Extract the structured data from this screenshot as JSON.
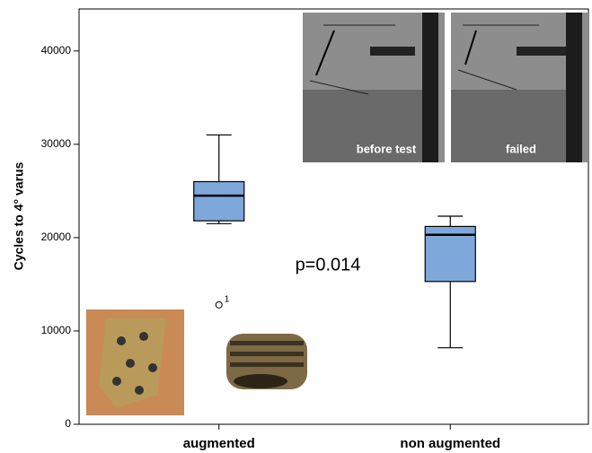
{
  "chart_data": {
    "type": "box",
    "y_label": "Cycles to 4° varus",
    "categories": [
      "augmented",
      "non augmented"
    ],
    "color": "#7fa8da",
    "boxes": [
      {
        "whisker_low": 21500,
        "q1": 21800,
        "median": 24500,
        "q3": 26000,
        "whisker_high": 31000,
        "outliers": [
          12800
        ],
        "outlier_cases": [
          "1"
        ]
      },
      {
        "whisker_low": 8200,
        "q1": 15300,
        "median": 20300,
        "q3": 21200,
        "whisker_high": 22300,
        "outliers": [],
        "outlier_cases": []
      }
    ],
    "ylim": [
      0,
      44500
    ],
    "yticks": [
      0,
      10000,
      20000,
      30000,
      40000
    ],
    "annotation": "p=0.014"
  },
  "insets": {
    "before": "before test",
    "after": "failed"
  }
}
